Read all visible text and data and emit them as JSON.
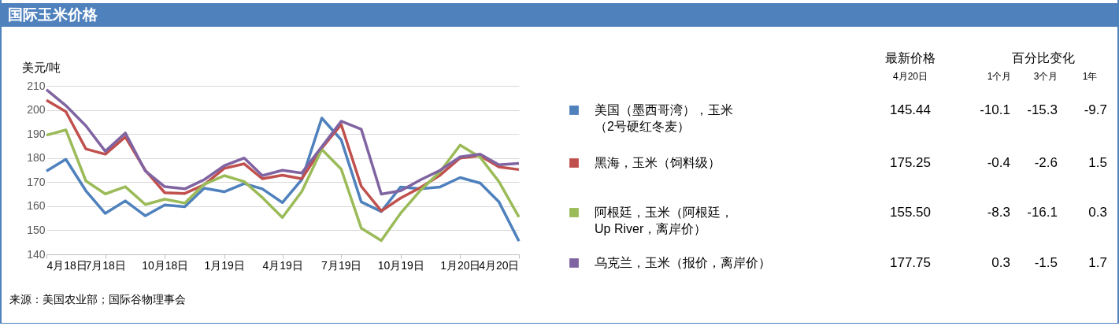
{
  "chart_data": {
    "type": "line",
    "title": "国际玉米价格",
    "ylabel": "美元/吨",
    "x": [
      "2018-04",
      "2018-05",
      "2018-06",
      "2018-07",
      "2018-08",
      "2018-09",
      "2018-10",
      "2018-11",
      "2018-12",
      "2019-01",
      "2019-02",
      "2019-03",
      "2019-04",
      "2019-05",
      "2019-06",
      "2019-07",
      "2019-08",
      "2019-09",
      "2019-10",
      "2019-11",
      "2019-12",
      "2020-01",
      "2020-02",
      "2020-03",
      "2020-04"
    ],
    "xlim": [
      "2018-04",
      "2020-04"
    ],
    "xticks": [
      {
        "value": "2018-04",
        "label": "4月18日"
      },
      {
        "value": "2018-07",
        "label": "7月18日"
      },
      {
        "value": "2018-10",
        "label": "10月18日"
      },
      {
        "value": "2019-01",
        "label": "1月19日"
      },
      {
        "value": "2019-04",
        "label": "4月19日"
      },
      {
        "value": "2019-07",
        "label": "7月19日"
      },
      {
        "value": "2019-10",
        "label": "10月19日"
      },
      {
        "value": "2020-01",
        "label": "1月20日"
      },
      {
        "value": "2020-04",
        "label": "4月20日"
      }
    ],
    "ylim": [
      140,
      210
    ],
    "yticks": [
      140,
      150,
      160,
      170,
      180,
      190,
      200,
      210
    ],
    "grid": "y",
    "legend": "right",
    "series": [
      {
        "name": "美国（墨西哥湾），玉米（2号硬红冬麦）",
        "color": "#4f81bd",
        "values": [
          174.6,
          179.5,
          166.4,
          157,
          162.2,
          156,
          160.5,
          159.8,
          167.5,
          166,
          169.4,
          167.2,
          161.5,
          171,
          196.6,
          187.6,
          161.8,
          157.8,
          168,
          167.2,
          168,
          171.9,
          169.6,
          161.8,
          145.5
        ]
      },
      {
        "name": "黑海，玉米（饲料级）",
        "color": "#c0504d",
        "values": [
          204,
          199.3,
          183.8,
          181.6,
          188.8,
          174.9,
          165.6,
          165.3,
          168.9,
          175.7,
          177.6,
          171.4,
          172.9,
          171.4,
          184.1,
          193.9,
          168.3,
          158,
          163.4,
          167.8,
          172.9,
          180,
          181,
          176.3,
          175.2
        ]
      },
      {
        "name": "阿根廷，玉米（阿根廷，Up River，离岸价）",
        "color": "#9bbb59",
        "values": [
          189.5,
          191.7,
          170.5,
          165.1,
          168.1,
          160.7,
          162.9,
          161.3,
          169.1,
          172.7,
          170.2,
          163.6,
          155.3,
          166.1,
          183.6,
          175.4,
          150.9,
          145.7,
          157.1,
          166.7,
          174.3,
          185.4,
          180.3,
          170.2,
          155.5
        ]
      },
      {
        "name": "乌克兰，玉米（报价，离岸价）",
        "color": "#8064a2",
        "values": [
          208.4,
          201.8,
          193.4,
          182.8,
          190.4,
          174.6,
          168.1,
          167.2,
          171,
          176.8,
          180,
          172.7,
          174.9,
          173.8,
          184.7,
          195.3,
          192,
          165,
          166.4,
          171,
          174.9,
          180.5,
          181.6,
          177.2,
          177.8
        ]
      }
    ],
    "annotations": [
      "最新价格",
      "4月20日",
      "百分比变化",
      "1个月",
      "3个月",
      "1年",
      "145.44",
      "-10.1",
      "-15.3",
      "-9.7",
      "175.25",
      "-0.4",
      "-2.6",
      "1.5",
      "155.50",
      "-8.3",
      "-16.1",
      "0.3",
      "177.75",
      "0.3",
      "-1.5",
      "1.7",
      "来源：美国农业部；国际谷物理事会"
    ]
  }
}
